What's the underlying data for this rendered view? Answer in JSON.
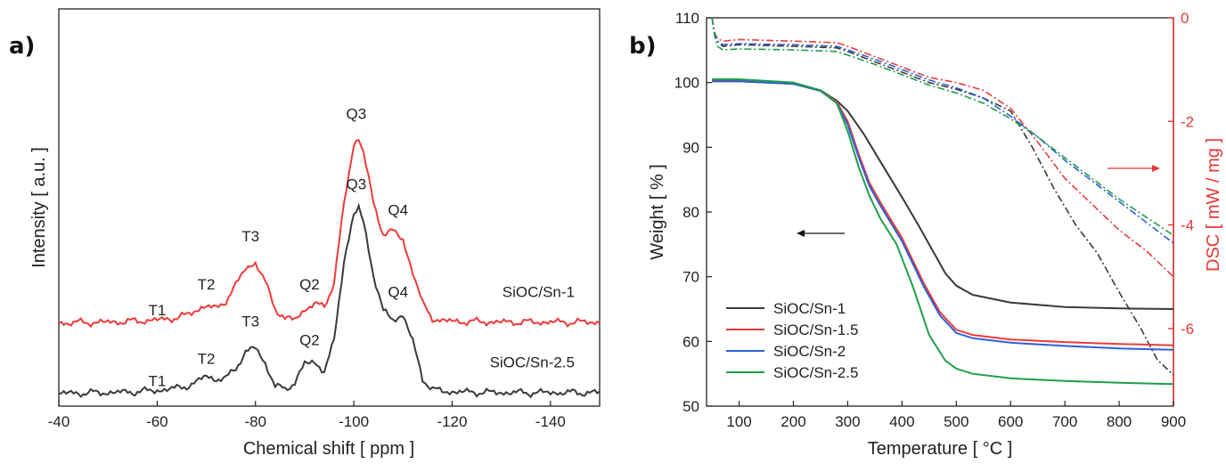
{
  "chart_data": [
    {
      "panel_label": "a)",
      "type": "line",
      "xlabel": "Chemical shift [ ppm ]",
      "ylabel": "Intensity [ a.u. ]",
      "xlim": [
        -40,
        -150
      ],
      "x_ticks": [
        "-40",
        "-60",
        "-80",
        "-100",
        "-120",
        "-140"
      ],
      "x_tick_values": [
        -40,
        -60,
        -80,
        -100,
        -120,
        -140
      ],
      "series": [
        {
          "name": "SiOC/Sn-1",
          "color": "#ee3a3a",
          "baseline": 0.75,
          "x": [
            -40,
            -50,
            -55,
            -60,
            -63,
            -66,
            -68,
            -70,
            -72,
            -74,
            -76,
            -78,
            -80,
            -82,
            -84,
            -86,
            -88,
            -90,
            -92,
            -94,
            -96,
            -98,
            -100,
            -101,
            -102,
            -104,
            -106,
            -108,
            -110,
            -112,
            -114,
            -116,
            -118,
            -120,
            -130,
            -140,
            -150
          ],
          "y": [
            0,
            0.01,
            0.02,
            0.04,
            0.06,
            0.1,
            0.18,
            0.22,
            0.2,
            0.3,
            0.5,
            0.75,
            0.8,
            0.55,
            0.2,
            0.05,
            0.05,
            0.18,
            0.25,
            0.22,
            0.55,
            1.6,
            2.4,
            2.5,
            2.3,
            1.6,
            1.2,
            1.25,
            1.1,
            0.7,
            0.25,
            0.06,
            0.03,
            0.02,
            0.01,
            0.01,
            0.01
          ],
          "annotations": [
            {
              "text": "T1",
              "x": -60,
              "dy": 0.1
            },
            {
              "text": "T2",
              "x": -70,
              "dy": 0.45
            },
            {
              "text": "T3",
              "x": -79,
              "dy": 1.1
            },
            {
              "text": "Q2",
              "x": -91,
              "dy": 0.45
            },
            {
              "text": "Q3",
              "x": -100.5,
              "dy": 2.75
            },
            {
              "text": "Q4",
              "x": -109,
              "dy": 1.45
            }
          ]
        },
        {
          "name": "SiOC/Sn-2.5",
          "color": "#3a3a3a",
          "baseline": -0.2,
          "x": [
            -40,
            -50,
            -55,
            -60,
            -63,
            -66,
            -68,
            -70,
            -72,
            -74,
            -76,
            -78,
            -80,
            -82,
            -84,
            -86,
            -88,
            -90,
            -92,
            -94,
            -96,
            -98,
            -100,
            -101,
            -102,
            -104,
            -106,
            -108,
            -110,
            -112,
            -114,
            -116,
            -118,
            -120,
            -130,
            -140,
            -150
          ],
          "y": [
            0,
            0.01,
            0.02,
            0.04,
            0.06,
            0.1,
            0.14,
            0.25,
            0.18,
            0.2,
            0.35,
            0.55,
            0.62,
            0.4,
            0.1,
            0.05,
            0.15,
            0.4,
            0.42,
            0.3,
            0.7,
            1.8,
            2.4,
            2.5,
            2.3,
            1.6,
            1.1,
            1.0,
            1.05,
            0.7,
            0.2,
            0.05,
            0.03,
            0.02,
            0.01,
            0.01,
            0.01
          ],
          "annotations": [
            {
              "text": "T1",
              "x": -60,
              "dy": 0.1
            },
            {
              "text": "T2",
              "x": -70,
              "dy": 0.4
            },
            {
              "text": "T3",
              "x": -79,
              "dy": 0.9
            },
            {
              "text": "Q2",
              "x": -91,
              "dy": 0.65
            },
            {
              "text": "Q3",
              "x": -100.5,
              "dy": 2.75
            },
            {
              "text": "Q4",
              "x": -109,
              "dy": 1.3
            }
          ]
        }
      ]
    },
    {
      "panel_label": "b)",
      "type": "line",
      "xlabel": "Temperature [ °C ]",
      "ylabel": "Weight [ % ]",
      "y2label": "DSC [ mW / mg ]",
      "xlim": [
        40,
        900
      ],
      "ylim": [
        50,
        110
      ],
      "y2lim": [
        -7.5,
        0
      ],
      "x_ticks": [
        "100",
        "200",
        "300",
        "400",
        "500",
        "600",
        "700",
        "800",
        "900"
      ],
      "y_ticks": [
        "50",
        "60",
        "70",
        "80",
        "90",
        "100",
        "110"
      ],
      "y2_ticks": [
        "0",
        "-2",
        "-4",
        "-6"
      ],
      "legend": "bottom-left",
      "tga": [
        {
          "name": "SiOC/Sn-1",
          "color": "#3a3a3a",
          "x": [
            50,
            100,
            200,
            250,
            280,
            300,
            330,
            360,
            400,
            430,
            460,
            480,
            500,
            530,
            600,
            700,
            800,
            900
          ],
          "y": [
            100.2,
            100.2,
            99.8,
            98.8,
            97.2,
            95.6,
            92.0,
            87.8,
            82.3,
            78.0,
            73.5,
            70.5,
            68.6,
            67.2,
            66.0,
            65.3,
            65.1,
            65.0
          ]
        },
        {
          "name": "SiOC/Sn-1.5",
          "color": "#ee3a3a",
          "x": [
            50,
            100,
            200,
            250,
            280,
            300,
            320,
            340,
            360,
            400,
            440,
            470,
            500,
            530,
            600,
            700,
            800,
            900
          ],
          "y": [
            100.4,
            100.4,
            99.9,
            98.8,
            97.0,
            94.0,
            89.0,
            84.5,
            81.5,
            76.0,
            69.0,
            64.5,
            61.8,
            61.0,
            60.3,
            59.9,
            59.6,
            59.4
          ]
        },
        {
          "name": "SiOC/Sn-2",
          "color": "#2d5fd6",
          "x": [
            50,
            100,
            200,
            250,
            280,
            300,
            320,
            340,
            360,
            400,
            440,
            470,
            500,
            530,
            600,
            700,
            800,
            900
          ],
          "y": [
            100.2,
            100.2,
            99.8,
            98.7,
            96.8,
            93.5,
            88.5,
            84.0,
            81.0,
            75.5,
            68.5,
            64.0,
            61.3,
            60.5,
            59.8,
            59.3,
            58.9,
            58.7
          ]
        },
        {
          "name": "SiOC/Sn-2.5",
          "color": "#1f9e4a",
          "x": [
            50,
            100,
            200,
            250,
            280,
            300,
            320,
            340,
            360,
            390,
            420,
            450,
            480,
            500,
            530,
            600,
            700,
            800,
            900
          ],
          "y": [
            100.5,
            100.5,
            100.0,
            98.8,
            96.8,
            92.5,
            87.0,
            82.5,
            79.0,
            75.0,
            68.5,
            61.0,
            57.0,
            55.8,
            55.0,
            54.3,
            53.9,
            53.6,
            53.4
          ]
        }
      ],
      "dsc": [
        {
          "name": "SiOC/Sn-1",
          "color": "#3a3a3a",
          "x": [
            50,
            55,
            60,
            70,
            100,
            200,
            280,
            300,
            350,
            400,
            450,
            500,
            550,
            600,
            640,
            680,
            720,
            760,
            800,
            840,
            870,
            900
          ],
          "y": [
            0,
            -0.3,
            -0.45,
            -0.55,
            -0.52,
            -0.55,
            -0.58,
            -0.65,
            -0.85,
            -1.05,
            -1.25,
            -1.38,
            -1.55,
            -1.8,
            -2.5,
            -3.3,
            -4.0,
            -4.55,
            -5.3,
            -6.0,
            -6.6,
            -6.9
          ]
        },
        {
          "name": "SiOC/Sn-1.5",
          "color": "#ee3a3a",
          "x": [
            50,
            55,
            60,
            70,
            100,
            200,
            280,
            300,
            350,
            400,
            450,
            500,
            550,
            600,
            650,
            700,
            750,
            800,
            850,
            900
          ],
          "y": [
            0,
            -0.3,
            -0.4,
            -0.45,
            -0.42,
            -0.45,
            -0.48,
            -0.55,
            -0.75,
            -0.95,
            -1.15,
            -1.25,
            -1.4,
            -1.75,
            -2.4,
            -3.1,
            -3.6,
            -4.1,
            -4.5,
            -5.0
          ]
        },
        {
          "name": "SiOC/Sn-2",
          "color": "#2d5fd6",
          "x": [
            50,
            55,
            60,
            70,
            100,
            200,
            280,
            300,
            350,
            400,
            450,
            500,
            550,
            600,
            650,
            700,
            750,
            800,
            850,
            900
          ],
          "y": [
            0,
            -0.3,
            -0.45,
            -0.52,
            -0.5,
            -0.52,
            -0.55,
            -0.62,
            -0.8,
            -1.0,
            -1.2,
            -1.35,
            -1.55,
            -1.9,
            -2.3,
            -2.75,
            -3.15,
            -3.55,
            -3.95,
            -4.35
          ]
        },
        {
          "name": "SiOC/Sn-2.5",
          "color": "#1f9e4a",
          "x": [
            50,
            55,
            60,
            70,
            100,
            200,
            280,
            300,
            350,
            400,
            450,
            500,
            550,
            600,
            650,
            700,
            750,
            800,
            850,
            900
          ],
          "y": [
            0,
            -0.35,
            -0.55,
            -0.62,
            -0.6,
            -0.62,
            -0.65,
            -0.72,
            -0.9,
            -1.1,
            -1.3,
            -1.45,
            -1.65,
            -1.95,
            -2.3,
            -2.7,
            -3.1,
            -3.5,
            -3.85,
            -4.2
          ]
        }
      ]
    }
  ]
}
